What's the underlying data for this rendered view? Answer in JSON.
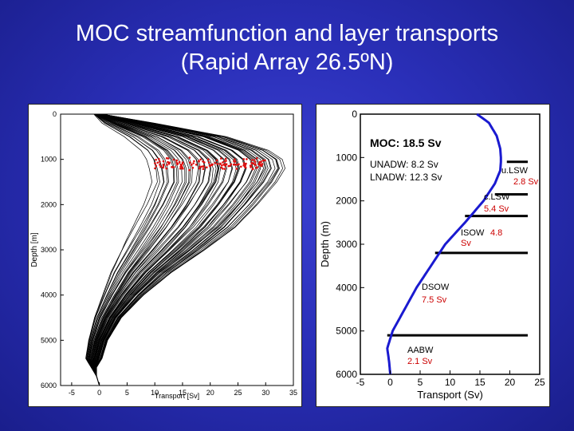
{
  "slide": {
    "title_line1": "MOC streamfunction and layer transports",
    "title_line2": "(Rapid Array 26.5ºN)"
  },
  "colors": {
    "background": "#2a2fb8",
    "ensemble_lines": "#000000",
    "red_markers": "#e01010",
    "profile_line": "#1a1ad0",
    "layer_bars": "#000000",
    "transport_values": "#cc0000"
  },
  "chart_data": [
    {
      "type": "line",
      "ylabel": "Depth [m]",
      "xlabel": "Transport [Sv]",
      "xlim": [
        -7,
        35
      ],
      "ylim": [
        6000,
        0
      ],
      "xticks": [
        -5,
        0,
        5,
        10,
        15,
        20,
        25,
        30,
        35
      ],
      "yticks": [
        0,
        1000,
        2000,
        3000,
        4000,
        5000,
        6000
      ],
      "ensemble": {
        "depth": [
          0,
          200,
          500,
          800,
          1000,
          1200,
          1500,
          2000,
          2500,
          3000,
          3500,
          4000,
          4500,
          5000,
          5400,
          5600,
          5800,
          6000
        ],
        "lower_envelope": [
          -1.0,
          0.5,
          4.5,
          7.5,
          8.5,
          9.0,
          9.5,
          8.0,
          6.0,
          4.0,
          2.0,
          0.5,
          -1.0,
          -2.0,
          -2.5,
          -1.5,
          -0.5,
          0.0
        ],
        "upper_envelope": [
          0.5,
          10.0,
          23.0,
          30.5,
          33.0,
          33.5,
          32.0,
          28.5,
          24.5,
          19.0,
          13.0,
          8.0,
          4.0,
          1.5,
          0.5,
          -0.5,
          -0.5,
          0.0
        ],
        "line_count": 60
      },
      "max_markers": {
        "depth_range": [
          900,
          1300
        ],
        "transport_range": [
          10,
          30
        ]
      },
      "grid": false
    },
    {
      "type": "line",
      "ylabel": "Depth (m)",
      "xlabel": "Transport (Sv)",
      "xlim": [
        -5,
        25
      ],
      "ylim": [
        6000,
        0
      ],
      "xticks": [
        -5,
        0,
        5,
        10,
        15,
        20,
        25
      ],
      "yticks": [
        0,
        1000,
        2000,
        3000,
        4000,
        5000,
        6000
      ],
      "series": [
        {
          "depth": [
            0,
            200,
            500,
            800,
            1000,
            1100,
            1300,
            1600,
            2000,
            2500,
            3000,
            3500,
            4000,
            4500,
            5000,
            5400,
            5700,
            6000
          ],
          "values": [
            14.5,
            16.5,
            17.8,
            18.4,
            18.5,
            18.5,
            18.4,
            17.5,
            15.6,
            12.5,
            9.2,
            6.8,
            4.4,
            2.4,
            0.4,
            -0.5,
            -0.2,
            0.0
          ]
        }
      ],
      "annotations": {
        "moc": "MOC: 18.5 Sv",
        "unadw": "UNADW: 8.2 Sv",
        "lnadw": "LNADW: 12.3 Sv",
        "layers": [
          {
            "name": "u.LSW",
            "value": "2.8 Sv"
          },
          {
            "name": "c.LSW",
            "value": "5.4 Sv"
          },
          {
            "name": "ISOW",
            "value": "4.8 Sv"
          },
          {
            "name": "DSOW",
            "value": "7.5 Sv"
          },
          {
            "name": "AABW",
            "value": "2.1 Sv"
          }
        ]
      },
      "layer_boundaries": [
        {
          "depth": 1100,
          "x_from": 19.5,
          "x_to": 23
        },
        {
          "depth": 1850,
          "x_from": 17.5,
          "x_to": 23
        },
        {
          "depth": 2350,
          "x_from": 12.5,
          "x_to": 23
        },
        {
          "depth": 3200,
          "x_from": 7.5,
          "x_to": 23
        },
        {
          "depth": 5100,
          "x_from": -0.5,
          "x_to": 23
        }
      ],
      "grid": false
    }
  ]
}
